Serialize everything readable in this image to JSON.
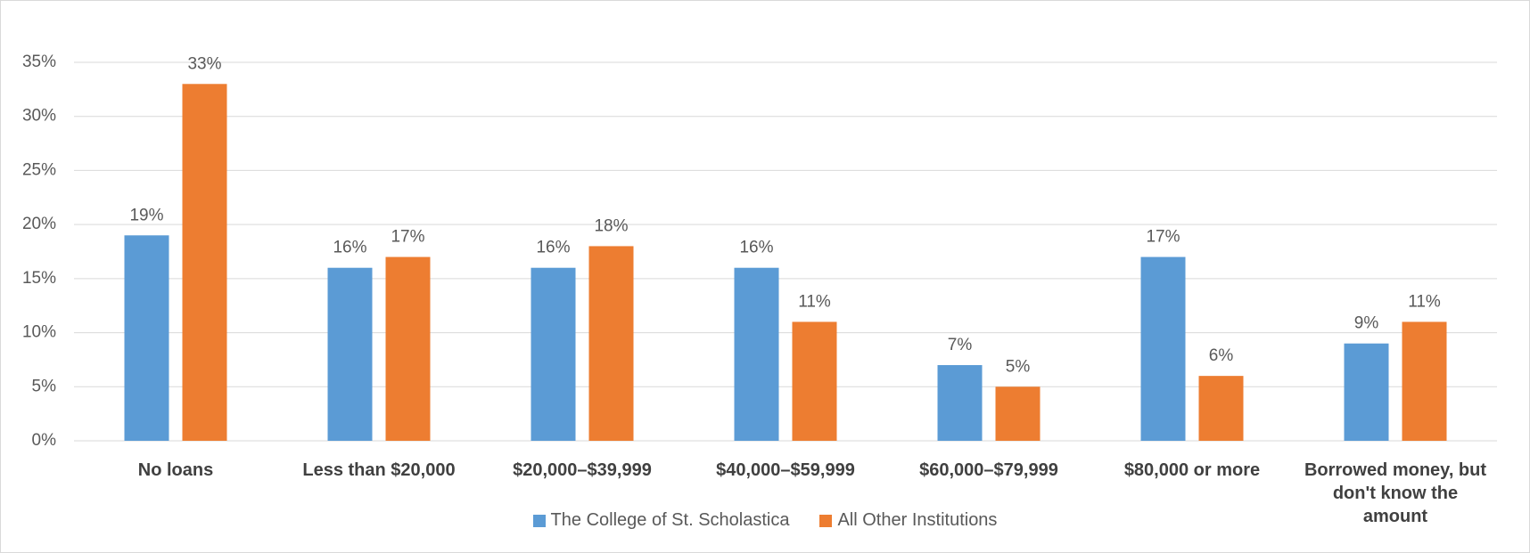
{
  "chart_data": {
    "type": "bar",
    "categories": [
      "No loans",
      "Less than $20,000",
      "$20,000–$39,999",
      "$40,000–$59,999",
      "$60,000–$79,999",
      "$80,000 or more",
      "Borrowed money, but don't know the amount"
    ],
    "series": [
      {
        "name": "The College of St. Scholastica",
        "color": "#5b9bd5",
        "values": [
          19,
          16,
          16,
          16,
          7,
          17,
          9
        ],
        "value_labels": [
          "19%",
          "16%",
          "16%",
          "16%",
          "7%",
          "17%",
          "9%"
        ]
      },
      {
        "name": "All Other Institutions",
        "color": "#ed7d31",
        "values": [
          33,
          17,
          18,
          11,
          5,
          6,
          11
        ],
        "value_labels": [
          "33%",
          "17%",
          "18%",
          "11%",
          "5%",
          "6%",
          "11%"
        ]
      }
    ],
    "ylim": [
      0,
      35
    ],
    "yticks": [
      {
        "value": 0,
        "label": "0%"
      },
      {
        "value": 5,
        "label": "5%"
      },
      {
        "value": 10,
        "label": "10%"
      },
      {
        "value": 15,
        "label": "15%"
      },
      {
        "value": 20,
        "label": "20%"
      },
      {
        "value": 25,
        "label": "25%"
      },
      {
        "value": 30,
        "label": "30%"
      },
      {
        "value": 35,
        "label": "35%"
      }
    ],
    "grid": true,
    "legend": "bottom"
  }
}
